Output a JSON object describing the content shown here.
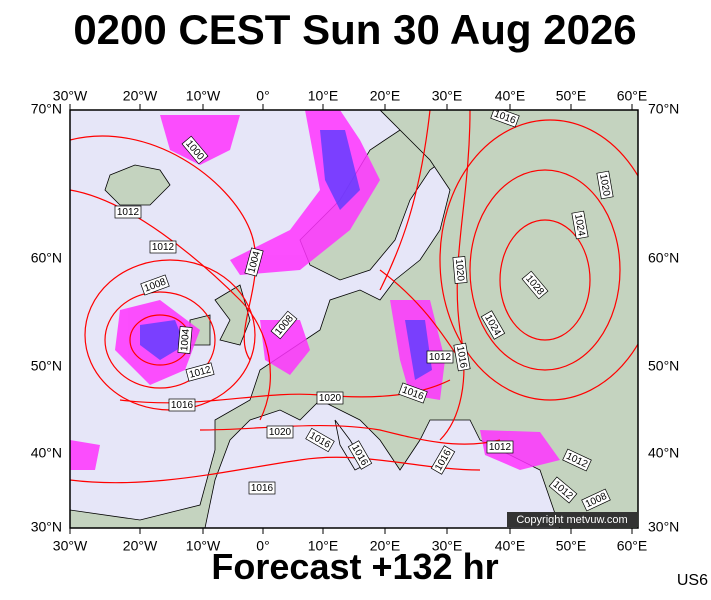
{
  "header": {
    "title": "0200 CEST Sun 30 Aug 2026"
  },
  "map": {
    "lon_ticks": [
      "30°W",
      "20°W",
      "10°W",
      "0°",
      "10°E",
      "20°E",
      "30°E",
      "40°E",
      "50°E",
      "60°E"
    ],
    "lat_ticks": [
      "70°N",
      "60°N",
      "50°N",
      "40°N",
      "30°N"
    ],
    "isobar_labels": [
      "1016",
      "1000",
      "1012",
      "1012",
      "1004",
      "1008",
      "1008",
      "1004",
      "1012",
      "1016",
      "1020",
      "1016",
      "1012",
      "1016",
      "1020",
      "1024",
      "1020",
      "1028",
      "1024",
      "1020",
      "1016",
      "1016",
      "1016",
      "1012",
      "1012",
      "1012",
      "1008",
      "1016"
    ],
    "copyright": "Copyright metvuw.com"
  },
  "footer": {
    "forecast": "Forecast +132 hr",
    "code": "US6"
  }
}
